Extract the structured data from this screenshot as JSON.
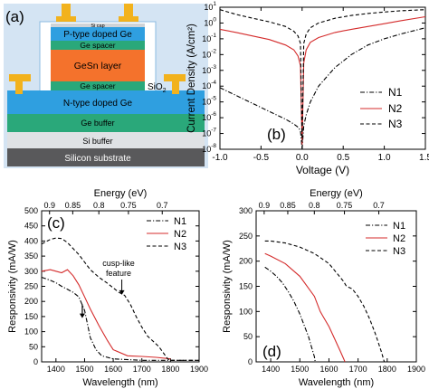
{
  "panel_a": {
    "label": "(a)",
    "layers": {
      "si_cap": "Si cap",
      "p_type": "P-type doped Ge",
      "ge_spacer_top": "Ge spacer",
      "gesn": "GeSn layer",
      "ge_spacer_bottom": "Ge spacer",
      "sio2_prefix": "SiO",
      "sio2_sub": "2",
      "n_type": "N-type doped Ge",
      "ge_buffer": "Ge buffer",
      "si_buffer": "Si buffer",
      "substrate": "Silicon substrate"
    },
    "colors": {
      "background": "#d4e4f3",
      "outline": "#8bbbe0",
      "contact": "#f2b21d",
      "si_cap": "#cfd3d7",
      "p_type": "#2f9fe0",
      "ge_spacer": "#2aa87a",
      "gesn": "#f4722c",
      "n_type": "#2f9fe0",
      "ge_buffer": "#2aa87a",
      "si_buffer": "#dfe2e5",
      "substrate": "#59595b"
    }
  },
  "chart_data": [
    {
      "panel": "(b)",
      "type": "line",
      "xlabel": "Voltage (V)",
      "ylabel": "Current Density (A/cm²)",
      "xlim": [
        -1.0,
        1.5
      ],
      "ylim_log10": [
        -8,
        1
      ],
      "log_y": true,
      "xticks": [
        "-1.0",
        "-0.5",
        "0.0",
        "0.5",
        "1.0",
        "1.5"
      ],
      "yticks": [
        {
          "base": "10",
          "exp": "1"
        },
        {
          "base": "10",
          "exp": "0"
        },
        {
          "base": "10",
          "exp": "-1"
        },
        {
          "base": "10",
          "exp": "-2"
        },
        {
          "base": "10",
          "exp": "-3"
        },
        {
          "base": "10",
          "exp": "-4"
        },
        {
          "base": "10",
          "exp": "-5"
        },
        {
          "base": "10",
          "exp": "-6"
        },
        {
          "base": "10",
          "exp": "-7"
        },
        {
          "base": "10",
          "exp": "-8"
        }
      ],
      "legend_position": "center-right",
      "series": [
        {
          "name": "N1",
          "style": "dashdot",
          "color": "#000000",
          "x": [
            -1.0,
            -0.8,
            -0.6,
            -0.4,
            -0.2,
            -0.1,
            -0.05,
            -0.02,
            0.0,
            0.02,
            0.05,
            0.1,
            0.2,
            0.4,
            0.6,
            0.8,
            1.0,
            1.2,
            1.5
          ],
          "y": [
            8e-05,
            2.5e-05,
            8e-06,
            2.5e-06,
            8e-07,
            4e-07,
            2.5e-07,
            1.5e-07,
            1e-08,
            3e-07,
            1.5e-06,
            1e-05,
            0.0001,
            0.0015,
            0.01,
            0.04,
            0.1,
            0.2,
            0.5
          ]
        },
        {
          "name": "N2",
          "style": "solid",
          "color": "#d42b2b",
          "x": [
            -1.0,
            -0.8,
            -0.6,
            -0.4,
            -0.2,
            -0.1,
            -0.05,
            -0.02,
            0.0,
            0.02,
            0.05,
            0.1,
            0.2,
            0.4,
            0.6,
            0.8,
            1.0,
            1.2,
            1.5
          ],
          "y": [
            0.4,
            0.25,
            0.15,
            0.09,
            0.04,
            0.02,
            0.008,
            0.002,
            2e-08,
            0.003,
            0.02,
            0.06,
            0.12,
            0.25,
            0.4,
            0.6,
            0.9,
            1.4,
            2.5
          ]
        },
        {
          "name": "N3",
          "style": "dashed",
          "color": "#000000",
          "x": [
            -1.0,
            -0.8,
            -0.6,
            -0.4,
            -0.2,
            -0.1,
            -0.05,
            -0.02,
            0.0,
            0.02,
            0.05,
            0.1,
            0.2,
            0.4,
            0.6,
            0.8,
            1.0,
            1.2,
            1.5
          ],
          "y": [
            7,
            3.5,
            2,
            1.2,
            0.6,
            0.3,
            0.15,
            0.05,
            3e-08,
            0.05,
            0.2,
            0.5,
            1,
            2,
            3,
            4,
            5,
            6,
            7
          ]
        }
      ]
    },
    {
      "panel": "(c)",
      "type": "line",
      "xlabel": "Wavelength (nm)",
      "ylabel": "Responsivity (mA/W)",
      "top_axis_label": "Energy (eV)",
      "xlim": [
        1350,
        1900
      ],
      "ylim": [
        0,
        500
      ],
      "xticks": [
        1400,
        1500,
        1600,
        1700,
        1800,
        1900
      ],
      "yticks": [
        0,
        50,
        100,
        150,
        200,
        250,
        300,
        350,
        400,
        450,
        500
      ],
      "top_ticks": [
        "0.9",
        "0.85",
        "0.8",
        "0.75",
        "0.7"
      ],
      "top_tick_values": [
        0.9,
        0.85,
        0.8,
        0.75,
        0.7
      ],
      "legend_position": "top-right",
      "annotation": "cusp-like feature",
      "series": [
        {
          "name": "N1",
          "style": "dashdot",
          "color": "#000000",
          "x": [
            1350,
            1380,
            1400,
            1420,
            1440,
            1460,
            1480,
            1500,
            1520,
            1540,
            1560,
            1600,
            1700,
            1900
          ],
          "y": [
            280,
            270,
            262,
            250,
            240,
            230,
            215,
            170,
            80,
            40,
            20,
            10,
            5,
            5
          ]
        },
        {
          "name": "N2",
          "style": "solid",
          "color": "#d42b2b",
          "x": [
            1350,
            1380,
            1400,
            1420,
            1440,
            1460,
            1480,
            1500,
            1520,
            1550,
            1580,
            1600,
            1650,
            1700,
            1750,
            1800
          ],
          "y": [
            300,
            305,
            300,
            295,
            305,
            285,
            255,
            215,
            175,
            120,
            70,
            40,
            20,
            18,
            15,
            10
          ]
        },
        {
          "name": "N3",
          "style": "dashed",
          "color": "#000000",
          "x": [
            1350,
            1380,
            1400,
            1420,
            1440,
            1460,
            1480,
            1500,
            1520,
            1550,
            1580,
            1600,
            1620,
            1640,
            1660,
            1680,
            1700,
            1720,
            1760,
            1790,
            1800,
            1900
          ],
          "y": [
            390,
            405,
            410,
            408,
            395,
            375,
            355,
            330,
            305,
            280,
            260,
            245,
            230,
            220,
            190,
            150,
            115,
            85,
            50,
            10,
            5,
            5
          ]
        }
      ]
    },
    {
      "panel": "(d)",
      "type": "line",
      "xlabel": "Wavelength (nm)",
      "ylabel": "Responsivity (mA/W)",
      "top_axis_label": "Energy (eV)",
      "xlim": [
        1350,
        1900
      ],
      "ylim": [
        0,
        300
      ],
      "xticks": [
        1400,
        1500,
        1600,
        1700,
        1800,
        1900
      ],
      "yticks": [
        0,
        50,
        100,
        150,
        200,
        250,
        300
      ],
      "top_ticks": [
        "0.9",
        "0.85",
        "0.8",
        "0.75",
        "0.7"
      ],
      "top_tick_values": [
        0.9,
        0.85,
        0.8,
        0.75,
        0.7
      ],
      "legend_position": "top-right",
      "series": [
        {
          "name": "N1",
          "style": "dashdot",
          "color": "#000000",
          "x": [
            1380,
            1400,
            1420,
            1440,
            1460,
            1480,
            1500,
            1520,
            1530,
            1540,
            1550,
            1553
          ],
          "y": [
            188,
            180,
            170,
            157,
            140,
            120,
            95,
            65,
            50,
            30,
            10,
            0
          ]
        },
        {
          "name": "N2",
          "style": "solid",
          "color": "#d42b2b",
          "x": [
            1380,
            1400,
            1450,
            1500,
            1550,
            1570,
            1580,
            1600,
            1620,
            1640,
            1655
          ],
          "y": [
            215,
            210,
            195,
            170,
            130,
            100,
            90,
            70,
            45,
            20,
            0
          ]
        },
        {
          "name": "N3",
          "style": "dashed",
          "color": "#000000",
          "x": [
            1380,
            1400,
            1450,
            1500,
            1550,
            1600,
            1650,
            1660,
            1680,
            1700,
            1720,
            1740,
            1760,
            1780,
            1790
          ],
          "y": [
            240,
            240,
            236,
            228,
            215,
            195,
            160,
            150,
            145,
            130,
            110,
            85,
            55,
            20,
            0
          ]
        }
      ]
    }
  ]
}
